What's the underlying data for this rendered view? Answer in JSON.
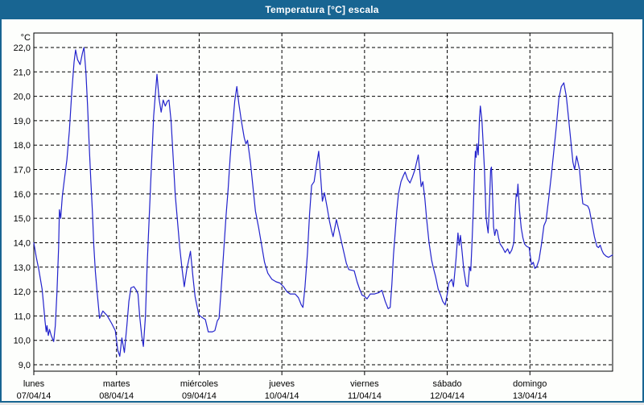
{
  "window": {
    "title": "Temperatura [°C] escala"
  },
  "colors": {
    "titlebar_bg": "#186592",
    "window_border": "#186592",
    "background": "#fdfefc",
    "line": "#2222cc",
    "grid": "#000000",
    "title_text": "#ffffff"
  },
  "chart_data": {
    "type": "line",
    "title": "Temperatura [°C] escala",
    "y_unit_label": "°C",
    "ylabel": "Temperatura",
    "ylim": [
      9,
      22
    ],
    "y_tick_labels": [
      "22,0",
      "21,0",
      "20,0",
      "19,0",
      "18,0",
      "17,0",
      "16,0",
      "15,0",
      "14,0",
      "13,0",
      "12,0",
      "11,0",
      "10,0",
      "9,0"
    ],
    "grid": "dashed",
    "legend_position": "none",
    "x_days": [
      {
        "label": "lunes",
        "date": "07/04/14"
      },
      {
        "label": "martes",
        "date": "08/04/14"
      },
      {
        "label": "miércoles",
        "date": "09/04/14"
      },
      {
        "label": "jueves",
        "date": "10/04/14"
      },
      {
        "label": "viernes",
        "date": "11/04/14"
      },
      {
        "label": "sábado",
        "date": "12/04/14"
      },
      {
        "label": "domingo",
        "date": "13/04/14"
      }
    ],
    "x_range_days": 7,
    "series": [
      {
        "name": "Temperatura [°C]",
        "color": "#2222cc",
        "points": [
          [
            0,
            14.0
          ],
          [
            0.03,
            13.4
          ],
          [
            0.06,
            12.9
          ],
          [
            0.1,
            12.1
          ],
          [
            0.12,
            11.4
          ],
          [
            0.135,
            10.8
          ],
          [
            0.15,
            10.35
          ],
          [
            0.16,
            10.6
          ],
          [
            0.175,
            10.2
          ],
          [
            0.19,
            10.45
          ],
          [
            0.21,
            10.2
          ],
          [
            0.24,
            9.95
          ],
          [
            0.26,
            10.6
          ],
          [
            0.28,
            12.0
          ],
          [
            0.3,
            13.8
          ],
          [
            0.31,
            15.35
          ],
          [
            0.325,
            15.0
          ],
          [
            0.345,
            15.9
          ],
          [
            0.37,
            16.6
          ],
          [
            0.4,
            17.4
          ],
          [
            0.43,
            18.6
          ],
          [
            0.46,
            20.2
          ],
          [
            0.487,
            21.4
          ],
          [
            0.505,
            21.9
          ],
          [
            0.53,
            21.5
          ],
          [
            0.56,
            21.3
          ],
          [
            0.59,
            21.8
          ],
          [
            0.607,
            22.0
          ],
          [
            0.63,
            21.0
          ],
          [
            0.65,
            19.6
          ],
          [
            0.67,
            18.0
          ],
          [
            0.69,
            16.5
          ],
          [
            0.71,
            15.2
          ],
          [
            0.725,
            13.9
          ],
          [
            0.745,
            12.8
          ],
          [
            0.765,
            12.0
          ],
          [
            0.795,
            10.9
          ],
          [
            0.835,
            11.2
          ],
          [
            0.89,
            11.0
          ],
          [
            0.94,
            10.7
          ],
          [
            0.985,
            10.4
          ],
          [
            1.015,
            9.6
          ],
          [
            1.04,
            9.35
          ],
          [
            1.065,
            10.1
          ],
          [
            1.095,
            9.5
          ],
          [
            1.125,
            10.6
          ],
          [
            1.15,
            11.6
          ],
          [
            1.175,
            12.15
          ],
          [
            1.21,
            12.2
          ],
          [
            1.24,
            12.05
          ],
          [
            1.26,
            11.9
          ],
          [
            1.28,
            11.0
          ],
          [
            1.305,
            10.2
          ],
          [
            1.325,
            9.75
          ],
          [
            1.35,
            11.0
          ],
          [
            1.37,
            13.0
          ],
          [
            1.395,
            15.0
          ],
          [
            1.42,
            17.0
          ],
          [
            1.45,
            19.2
          ],
          [
            1.475,
            20.3
          ],
          [
            1.49,
            20.9
          ],
          [
            1.515,
            19.9
          ],
          [
            1.54,
            19.35
          ],
          [
            1.565,
            19.85
          ],
          [
            1.59,
            19.6
          ],
          [
            1.615,
            19.8
          ],
          [
            1.635,
            19.85
          ],
          [
            1.66,
            19.0
          ],
          [
            1.685,
            17.5
          ],
          [
            1.71,
            16.0
          ],
          [
            1.735,
            15.0
          ],
          [
            1.765,
            13.8
          ],
          [
            1.79,
            13.0
          ],
          [
            1.82,
            12.2
          ],
          [
            1.85,
            12.9
          ],
          [
            1.895,
            13.65
          ],
          [
            1.925,
            12.6
          ],
          [
            1.95,
            11.8
          ],
          [
            1.995,
            11.05
          ],
          [
            2.03,
            10.95
          ],
          [
            2.075,
            10.85
          ],
          [
            2.11,
            10.35
          ],
          [
            2.16,
            10.35
          ],
          [
            2.19,
            10.4
          ],
          [
            2.22,
            10.8
          ],
          [
            2.24,
            10.9
          ],
          [
            2.26,
            11.8
          ],
          [
            2.28,
            12.8
          ],
          [
            2.3,
            13.8
          ],
          [
            2.325,
            15.1
          ],
          [
            2.35,
            16.2
          ],
          [
            2.375,
            17.5
          ],
          [
            2.4,
            18.6
          ],
          [
            2.43,
            19.8
          ],
          [
            2.455,
            20.4
          ],
          [
            2.48,
            19.7
          ],
          [
            2.51,
            19.0
          ],
          [
            2.545,
            18.3
          ],
          [
            2.565,
            18.05
          ],
          [
            2.585,
            18.2
          ],
          [
            2.62,
            17.3
          ],
          [
            2.65,
            16.3
          ],
          [
            2.68,
            15.3
          ],
          [
            2.72,
            14.6
          ],
          [
            2.76,
            13.8
          ],
          [
            2.79,
            13.2
          ],
          [
            2.83,
            12.75
          ],
          [
            2.88,
            12.5
          ],
          [
            2.93,
            12.4
          ],
          [
            2.975,
            12.35
          ],
          [
            3.02,
            12.2
          ],
          [
            3.06,
            12.0
          ],
          [
            3.1,
            11.9
          ],
          [
            3.16,
            11.9
          ],
          [
            3.2,
            11.75
          ],
          [
            3.235,
            11.45
          ],
          [
            3.255,
            11.35
          ],
          [
            3.28,
            12.2
          ],
          [
            3.31,
            13.6
          ],
          [
            3.335,
            15.2
          ],
          [
            3.36,
            16.35
          ],
          [
            3.39,
            16.5
          ],
          [
            3.42,
            17.2
          ],
          [
            3.445,
            17.75
          ],
          [
            3.465,
            16.9
          ],
          [
            3.49,
            15.7
          ],
          [
            3.515,
            16.05
          ],
          [
            3.545,
            15.5
          ],
          [
            3.575,
            14.9
          ],
          [
            3.6,
            14.5
          ],
          [
            3.62,
            14.25
          ],
          [
            3.66,
            14.95
          ],
          [
            3.69,
            14.5
          ],
          [
            3.72,
            14.05
          ],
          [
            3.75,
            13.6
          ],
          [
            3.78,
            13.15
          ],
          [
            3.81,
            12.9
          ],
          [
            3.875,
            12.85
          ],
          [
            3.91,
            12.4
          ],
          [
            3.94,
            12.1
          ],
          [
            3.97,
            11.85
          ],
          [
            4.0,
            11.8
          ],
          [
            4.03,
            11.7
          ],
          [
            4.07,
            11.9
          ],
          [
            4.12,
            11.9
          ],
          [
            4.17,
            11.95
          ],
          [
            4.21,
            12.05
          ],
          [
            4.25,
            11.6
          ],
          [
            4.285,
            11.3
          ],
          [
            4.31,
            11.35
          ],
          [
            4.33,
            12.3
          ],
          [
            4.35,
            13.5
          ],
          [
            4.37,
            14.4
          ],
          [
            4.39,
            15.3
          ],
          [
            4.41,
            16.0
          ],
          [
            4.44,
            16.5
          ],
          [
            4.47,
            16.75
          ],
          [
            4.49,
            16.9
          ],
          [
            4.52,
            16.6
          ],
          [
            4.55,
            16.45
          ],
          [
            4.58,
            16.7
          ],
          [
            4.61,
            17.0
          ],
          [
            4.65,
            17.6
          ],
          [
            4.685,
            16.3
          ],
          [
            4.705,
            16.5
          ],
          [
            4.73,
            15.8
          ],
          [
            4.75,
            15.0
          ],
          [
            4.78,
            14.0
          ],
          [
            4.81,
            13.3
          ],
          [
            4.83,
            13.0
          ],
          [
            4.86,
            12.6
          ],
          [
            4.89,
            12.1
          ],
          [
            4.92,
            11.85
          ],
          [
            4.945,
            11.6
          ],
          [
            4.975,
            11.45
          ],
          [
            5.0,
            11.9
          ],
          [
            5.02,
            12.35
          ],
          [
            5.055,
            12.5
          ],
          [
            5.075,
            12.2
          ],
          [
            5.105,
            13.3
          ],
          [
            5.13,
            14.4
          ],
          [
            5.145,
            13.9
          ],
          [
            5.16,
            14.3
          ],
          [
            5.18,
            13.6
          ],
          [
            5.2,
            12.9
          ],
          [
            5.23,
            12.25
          ],
          [
            5.25,
            12.2
          ],
          [
            5.27,
            13.0
          ],
          [
            5.285,
            12.85
          ],
          [
            5.3,
            14.05
          ],
          [
            5.315,
            15.3
          ],
          [
            5.33,
            17.0
          ],
          [
            5.34,
            17.75
          ],
          [
            5.35,
            17.5
          ],
          [
            5.36,
            18.05
          ],
          [
            5.375,
            17.6
          ],
          [
            5.39,
            19.1
          ],
          [
            5.4,
            19.6
          ],
          [
            5.42,
            19.0
          ],
          [
            5.435,
            18.0
          ],
          [
            5.45,
            17.0
          ],
          [
            5.47,
            15.05
          ],
          [
            5.48,
            14.75
          ],
          [
            5.495,
            14.4
          ],
          [
            5.51,
            15.6
          ],
          [
            5.525,
            17.0
          ],
          [
            5.535,
            17.1
          ],
          [
            5.55,
            15.7
          ],
          [
            5.56,
            14.65
          ],
          [
            5.575,
            14.3
          ],
          [
            5.59,
            14.55
          ],
          [
            5.605,
            14.5
          ],
          [
            5.62,
            14.2
          ],
          [
            5.64,
            13.95
          ],
          [
            5.67,
            13.8
          ],
          [
            5.7,
            13.6
          ],
          [
            5.73,
            13.75
          ],
          [
            5.755,
            13.55
          ],
          [
            5.78,
            13.7
          ],
          [
            5.805,
            14.0
          ],
          [
            5.825,
            15.5
          ],
          [
            5.835,
            16.0
          ],
          [
            5.845,
            15.9
          ],
          [
            5.855,
            16.4
          ],
          [
            5.875,
            15.3
          ],
          [
            5.895,
            14.6
          ],
          [
            5.915,
            14.2
          ],
          [
            5.935,
            13.95
          ],
          [
            5.96,
            13.85
          ],
          [
            5.99,
            13.8
          ],
          [
            6.02,
            13.1
          ],
          [
            6.04,
            13.2
          ],
          [
            6.06,
            12.95
          ],
          [
            6.08,
            13.0
          ],
          [
            6.11,
            13.3
          ],
          [
            6.14,
            13.95
          ],
          [
            6.17,
            14.7
          ],
          [
            6.195,
            14.9
          ],
          [
            6.23,
            15.9
          ],
          [
            6.26,
            16.8
          ],
          [
            6.29,
            17.8
          ],
          [
            6.32,
            18.8
          ],
          [
            6.35,
            19.9
          ],
          [
            6.38,
            20.4
          ],
          [
            6.41,
            20.55
          ],
          [
            6.44,
            20.0
          ],
          [
            6.47,
            19.0
          ],
          [
            6.5,
            18.0
          ],
          [
            6.52,
            17.3
          ],
          [
            6.54,
            17.0
          ],
          [
            6.565,
            17.55
          ],
          [
            6.6,
            17.0
          ],
          [
            6.62,
            16.2
          ],
          [
            6.64,
            15.6
          ],
          [
            6.67,
            15.55
          ],
          [
            6.7,
            15.5
          ],
          [
            6.72,
            15.35
          ],
          [
            6.75,
            14.8
          ],
          [
            6.78,
            14.25
          ],
          [
            6.81,
            13.85
          ],
          [
            6.83,
            13.8
          ],
          [
            6.85,
            13.9
          ],
          [
            6.87,
            13.7
          ],
          [
            6.89,
            13.55
          ],
          [
            6.92,
            13.45
          ],
          [
            6.95,
            13.4
          ],
          [
            6.975,
            13.45
          ],
          [
            7.0,
            13.5
          ]
        ]
      }
    ]
  }
}
